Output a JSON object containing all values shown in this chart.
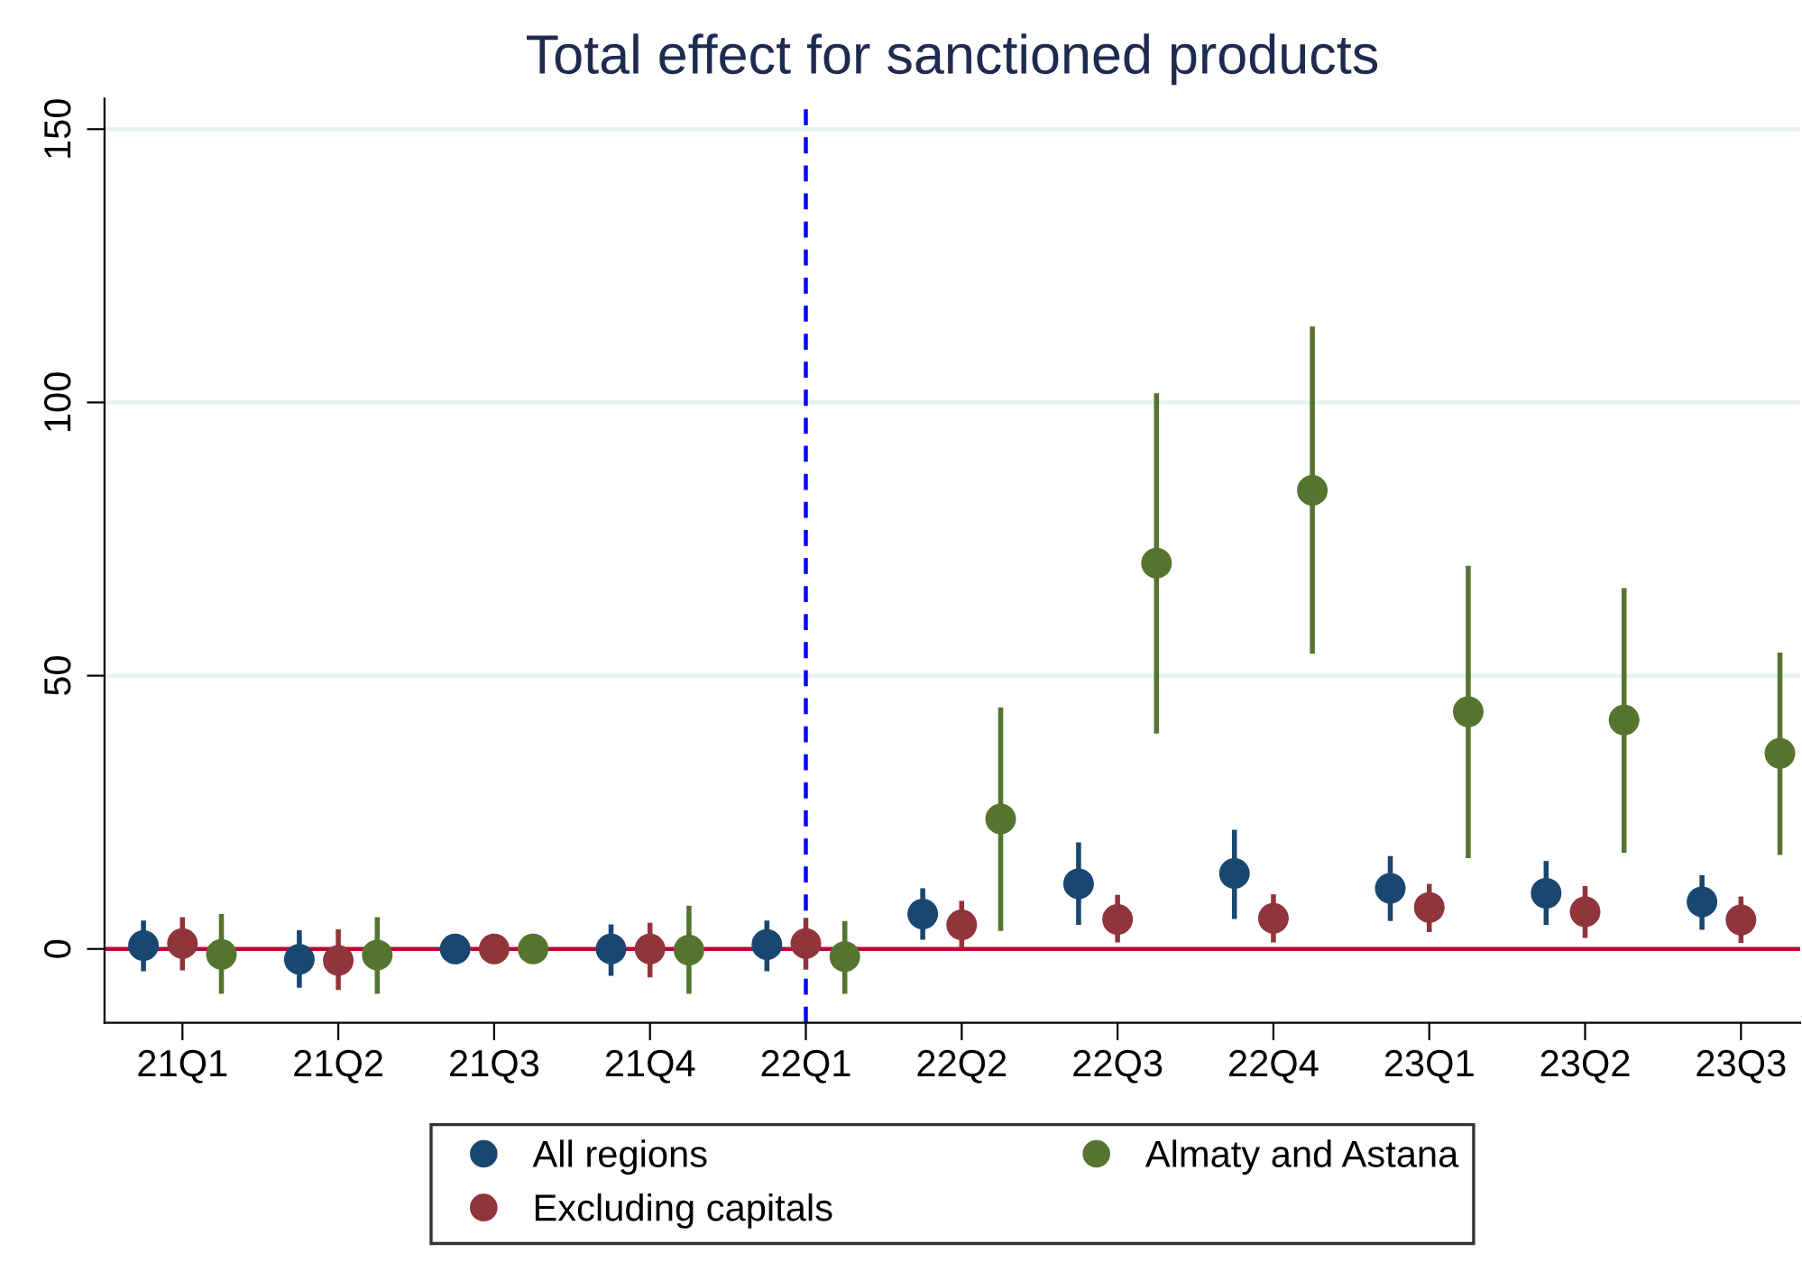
{
  "chart_data": {
    "type": "scatter",
    "title": "Total effect for sanctioned products",
    "categories": [
      "21Q1",
      "21Q2",
      "21Q3",
      "21Q4",
      "22Q1",
      "22Q2",
      "22Q3",
      "22Q4",
      "23Q1",
      "23Q2",
      "23Q3"
    ],
    "series": [
      {
        "name": "All regions",
        "color": "#1a476f",
        "values": [
          0.6,
          -1.9,
          0,
          0,
          0.8,
          6.4,
          11.9,
          13.8,
          11.1,
          10.2,
          8.6
        ],
        "errors": [
          [
            -4.1,
            5.2
          ],
          [
            -7.1,
            3.4
          ],
          null,
          [
            -4.9,
            4.5
          ],
          [
            -4.1,
            5.2
          ],
          [
            1.7,
            11.1
          ],
          [
            4.4,
            19.5
          ],
          [
            5.5,
            21.8
          ],
          [
            5.1,
            17.0
          ],
          [
            4.4,
            16.1
          ],
          [
            3.5,
            13.5
          ]
        ]
      },
      {
        "name": "Excluding capitals",
        "color": "#90353b",
        "values": [
          1.0,
          -2.1,
          0,
          0,
          1.0,
          4.4,
          5.4,
          5.6,
          7.6,
          6.8,
          5.3
        ],
        "errors": [
          [
            -3.9,
            5.8
          ],
          [
            -7.5,
            3.6
          ],
          null,
          [
            -5.2,
            4.8
          ],
          [
            -3.8,
            5.7
          ],
          [
            0.2,
            8.8
          ],
          [
            1.2,
            9.9
          ],
          [
            1.2,
            10.0
          ],
          [
            3.1,
            11.9
          ],
          [
            2.0,
            11.5
          ],
          [
            1.1,
            9.6
          ]
        ]
      },
      {
        "name": "Almaty and Astana",
        "color": "#55752f",
        "values": [
          -1.0,
          -1.1,
          0,
          -0.2,
          -1.4,
          23.8,
          70.6,
          83.9,
          43.4,
          41.9,
          35.8
        ],
        "errors": [
          [
            -8.2,
            6.4
          ],
          [
            -8.2,
            5.8
          ],
          null,
          [
            -8.2,
            7.9
          ],
          [
            -8.2,
            5.1
          ],
          [
            3.3,
            44.2
          ],
          [
            39.4,
            101.7
          ],
          [
            54.0,
            113.9
          ],
          [
            16.6,
            70.1
          ],
          [
            17.6,
            66.0
          ],
          [
            17.2,
            54.2
          ]
        ]
      }
    ],
    "ylim": [
      -13.5,
      155.6
    ],
    "yticks": [
      0,
      50,
      100,
      150
    ],
    "grid": "y",
    "marker": "circle",
    "legend": "bottom",
    "ref_lines": [
      {
        "axis": "y",
        "value": 0,
        "color": "#c10534",
        "line_style": "solid"
      },
      {
        "axis": "x",
        "value": "22Q1",
        "color": "#0000ff",
        "line_style": "dashed"
      }
    ]
  }
}
